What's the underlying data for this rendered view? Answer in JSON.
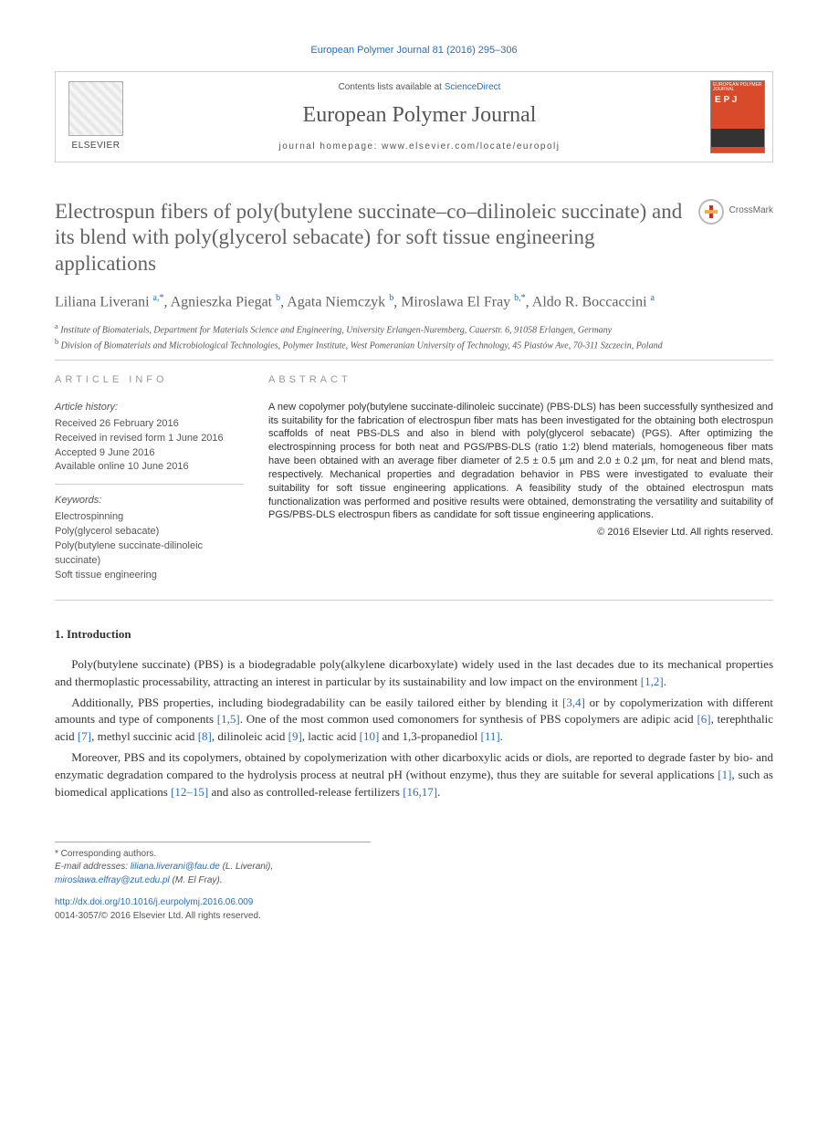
{
  "colors": {
    "link": "#2a6ebb",
    "muted": "#626262",
    "cover": "#d94a2a"
  },
  "citation": "European Polymer Journal 81 (2016) 295–306",
  "masthead": {
    "publisher": "ELSEVIER",
    "contents_prefix": "Contents lists available at ",
    "contents_link": "ScienceDirect",
    "journal": "European Polymer Journal",
    "homepage_label": "journal homepage: www.elsevier.com/locate/europolj",
    "cover_caption_top": "EUROPEAN POLYMER JOURNAL",
    "cover_letters": "E\nP\nJ"
  },
  "crossmark_label": "CrossMark",
  "title": "Electrospun fibers of poly(butylene succinate–co–dilinoleic succinate) and its blend with poly(glycerol sebacate) for soft tissue engineering applications",
  "authors_html": "Liliana Liverani <sup>a,*</sup>, Agnieszka Piegat <sup>b</sup>, Agata Niemczyk <sup>b</sup>, Miroslawa El Fray <sup>b,*</sup>, Aldo R. Boccaccini <sup>a</sup>",
  "affiliations": {
    "a": "Institute of Biomaterials, Department for Materials Science and Engineering, University Erlangen-Nuremberg, Cauerstr. 6, 91058 Erlangen, Germany",
    "b": "Division of Biomaterials and Microbiological Technologies, Polymer Institute, West Pomeranian University of Technology, 45 Piastów Ave, 70-311 Szczecin, Poland"
  },
  "info": {
    "label": "ARTICLE INFO",
    "history_label": "Article history:",
    "history": [
      "Received 26 February 2016",
      "Received in revised form 1 June 2016",
      "Accepted 9 June 2016",
      "Available online 10 June 2016"
    ],
    "keywords_label": "Keywords:",
    "keywords": [
      "Electrospinning",
      "Poly(glycerol sebacate)",
      "Poly(butylene succinate-dilinoleic succinate)",
      "Soft tissue engineering"
    ]
  },
  "abstract": {
    "label": "ABSTRACT",
    "text": "A new copolymer poly(butylene succinate-dilinoleic succinate) (PBS-DLS) has been successfully synthesized and its suitability for the fabrication of electrospun fiber mats has been investigated for the obtaining both electrospun scaffolds of neat PBS-DLS and also in blend with poly(glycerol sebacate) (PGS). After optimizing the electrospinning process for both neat and PGS/PBS-DLS (ratio 1:2) blend materials, homogeneous fiber mats have been obtained with an average fiber diameter of 2.5 ± 0.5 µm and 2.0 ± 0.2 µm, for neat and blend mats, respectively. Mechanical properties and degradation behavior in PBS were investigated to evaluate their suitability for soft tissue engineering applications. A feasibility study of the obtained electrospun mats functionalization was performed and positive results were obtained, demonstrating the versatility and suitability of PGS/PBS-DLS electrospun fibers as candidate for soft tissue engineering applications.",
    "copyright": "© 2016 Elsevier Ltd. All rights reserved."
  },
  "sections": {
    "intro_heading": "1. Introduction",
    "intro_paragraphs": [
      "Poly(butylene succinate) (PBS) is a biodegradable poly(alkylene dicarboxylate) widely used in the last decades due to its mechanical properties and thermoplastic processability, attracting an interest in particular by its sustainability and low impact on the environment [1,2].",
      "Additionally, PBS properties, including biodegradability can be easily tailored either by blending it [3,4] or by copolymerization with different amounts and type of components [1,5]. One of the most common used comonomers for synthesis of PBS copolymers are adipic acid [6], terephthalic acid [7], methyl succinic acid [8], dilinoleic acid [9], lactic acid [10] and 1,3-propanediol [11].",
      "Moreover, PBS and its copolymers, obtained by copolymerization with other dicarboxylic acids or diols, are reported to degrade faster by bio- and enzymatic degradation compared to the hydrolysis process at neutral pH (without enzyme), thus they are suitable for several applications [1], such as biomedical applications [12–15] and also as controlled-release fertilizers [16,17]."
    ]
  },
  "footnotes": {
    "corr": "Corresponding authors.",
    "email_label": "E-mail addresses:",
    "emails": [
      {
        "addr": "liliana.liverani@fau.de",
        "who": "(L. Liverani)"
      },
      {
        "addr": "miroslawa.elfray@zut.edu.pl",
        "who": "(M. El Fray)"
      }
    ]
  },
  "footer": {
    "doi": "http://dx.doi.org/10.1016/j.eurpolymj.2016.06.009",
    "issn_line": "0014-3057/© 2016 Elsevier Ltd. All rights reserved."
  }
}
